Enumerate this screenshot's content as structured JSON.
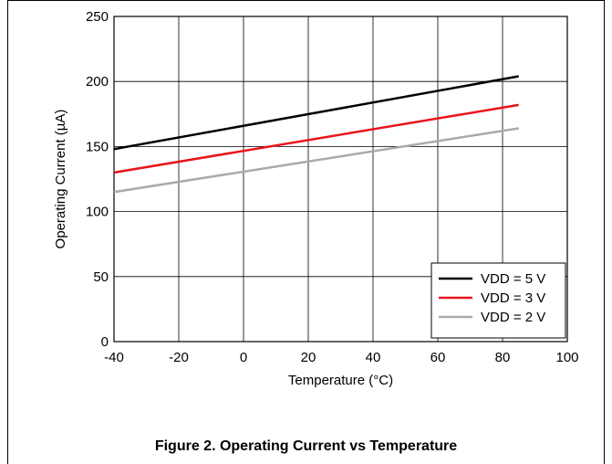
{
  "caption": "Figure 2. Operating Current vs Temperature",
  "chart_data": {
    "type": "line",
    "title": "",
    "xlabel": "Temperature (°C)",
    "ylabel": "Operating Current (µA)",
    "xlim": [
      -40,
      100
    ],
    "ylim": [
      0,
      250
    ],
    "xticks": [
      -40,
      -20,
      0,
      20,
      40,
      60,
      80,
      100
    ],
    "yticks": [
      0,
      50,
      100,
      150,
      200,
      250
    ],
    "grid": true,
    "legend_position": "bottom-right",
    "series": [
      {
        "name": "VDD = 5 V",
        "color": "#000000",
        "x": [
          -40,
          85
        ],
        "y": [
          148,
          204
        ]
      },
      {
        "name": "VDD = 3 V",
        "color": "#e8141c",
        "x": [
          -40,
          85
        ],
        "y": [
          130,
          182
        ]
      },
      {
        "name": "VDD = 2 V",
        "color": "#aaaaaa",
        "x": [
          -40,
          85
        ],
        "y": [
          115,
          164
        ]
      }
    ]
  }
}
